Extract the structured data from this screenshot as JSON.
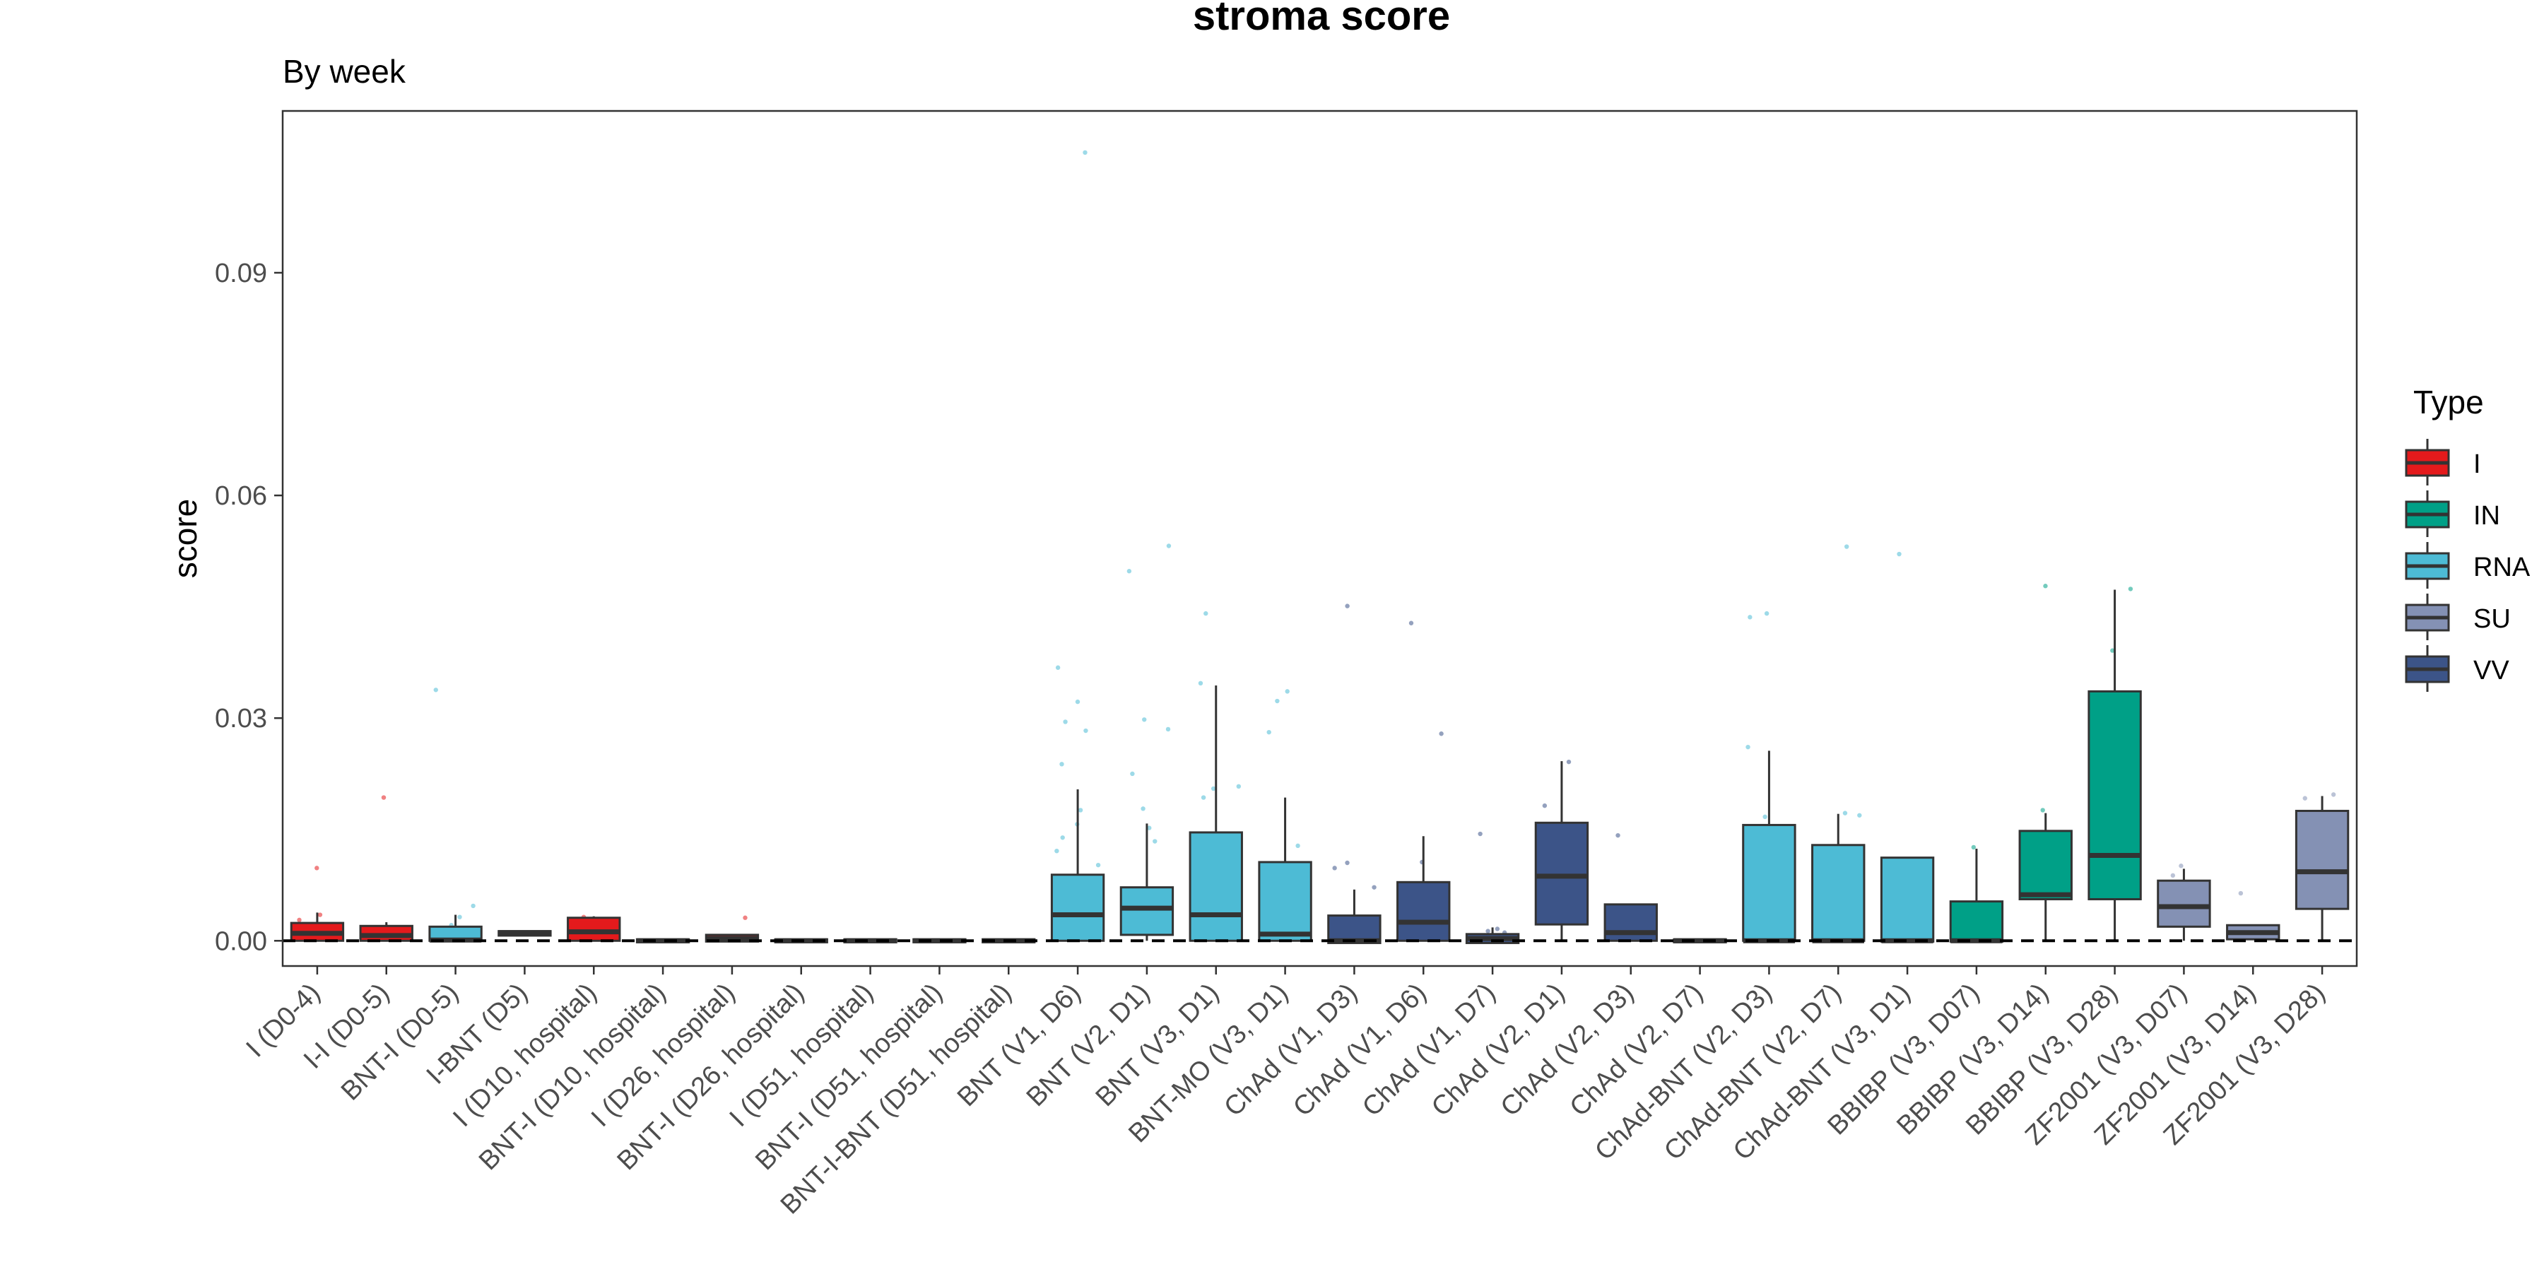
{
  "chart_data": {
    "type": "box",
    "title": "stroma score",
    "subtitle": "By week",
    "xlabel": "",
    "ylabel": "score",
    "ylim": [
      -0.0034,
      0.1118
    ],
    "yticks": [
      0.0,
      0.03,
      0.06,
      0.09
    ],
    "ytick_labels": [
      "0.00",
      "0.03",
      "0.06",
      "0.09"
    ],
    "reference_line_y": 0,
    "legend": {
      "title": "Type",
      "position": "right",
      "entries": [
        {
          "label": "I",
          "color": "#E41A1C"
        },
        {
          "label": "IN",
          "color": "#00A087"
        },
        {
          "label": "RNA",
          "color": "#4DBBD5"
        },
        {
          "label": "SU",
          "color": "#8491B4"
        },
        {
          "label": "VV",
          "color": "#3C5488"
        }
      ]
    },
    "categories": [
      {
        "label": "I (D0-4)",
        "type": "I",
        "q1": 0.0,
        "median": 0.001,
        "q3": 0.0024,
        "whisker_low": 0.0,
        "whisker_high": 0.0038,
        "points": [
          0.0098,
          0.0035,
          0.0028,
          0.0012
        ]
      },
      {
        "label": "I-I (D0-5)",
        "type": "I",
        "q1": 0.0,
        "median": 0.0007,
        "q3": 0.002,
        "whisker_low": 0.0,
        "whisker_high": 0.0025,
        "points": [
          0.0193,
          0.0019
        ]
      },
      {
        "label": "BNT-I (D0-5)",
        "type": "RNA",
        "q1": 0.0,
        "median": 0.0001,
        "q3": 0.0019,
        "whisker_low": 0.0,
        "whisker_high": 0.0035,
        "points": [
          0.0338,
          0.0047,
          0.0032,
          0.0021
        ]
      },
      {
        "label": "I-BNT (D5)",
        "type": "I",
        "q1": 0.0007,
        "median": 0.0011,
        "q3": 0.0013,
        "whisker_low": 0.0007,
        "whisker_high": 0.0013,
        "points": []
      },
      {
        "label": "I (D10, hospital)",
        "type": "I",
        "q1": 0.0,
        "median": 0.0012,
        "q3": 0.0031,
        "whisker_low": 0.0,
        "whisker_high": 0.0033,
        "points": [
          0.0032
        ]
      },
      {
        "label": "BNT-I (D10, hospital)",
        "type": "I",
        "q1": -0.0002,
        "median": 0.0,
        "q3": 0.0002,
        "whisker_low": -0.0002,
        "whisker_high": 0.0002,
        "points": []
      },
      {
        "label": "I (D26, hospital)",
        "type": "I",
        "q1": -0.0001,
        "median": 0.0003,
        "q3": 0.0008,
        "whisker_low": -0.0001,
        "whisker_high": 0.0008,
        "points": [
          0.0031
        ]
      },
      {
        "label": "BNT-I (D26, hospital)",
        "type": "I",
        "q1": -0.0002,
        "median": 0.0,
        "q3": 0.0002,
        "whisker_low": -0.0002,
        "whisker_high": 0.0002,
        "points": []
      },
      {
        "label": "I (D51, hospital)",
        "type": "I",
        "q1": -0.0002,
        "median": 0.0,
        "q3": 0.0002,
        "whisker_low": -0.0002,
        "whisker_high": 0.0002,
        "points": []
      },
      {
        "label": "BNT-I (D51, hospital)",
        "type": "I",
        "q1": -0.0002,
        "median": 0.0,
        "q3": 0.0002,
        "whisker_low": -0.0002,
        "whisker_high": 0.0002,
        "points": []
      },
      {
        "label": "BNT-I-BNT (D51, hospital)",
        "type": "I",
        "q1": -0.0002,
        "median": 0.0,
        "q3": 0.0002,
        "whisker_low": -0.0002,
        "whisker_high": 0.0002,
        "points": []
      },
      {
        "label": "BNT (V1, D6)",
        "type": "RNA",
        "q1": 0.0,
        "median": 0.0035,
        "q3": 0.0089,
        "whisker_low": 0.0,
        "whisker_high": 0.0204,
        "points": [
          0.1062,
          0.0368,
          0.0322,
          0.0295,
          0.0283,
          0.0238,
          0.0176,
          0.0157,
          0.0139,
          0.0121,
          0.0102
        ]
      },
      {
        "label": "BNT (V2, D1)",
        "type": "RNA",
        "q1": 0.0008,
        "median": 0.0044,
        "q3": 0.0072,
        "whisker_low": 0.0,
        "whisker_high": 0.0158,
        "points": [
          0.0532,
          0.0498,
          0.0298,
          0.0285,
          0.0225,
          0.0178,
          0.0152,
          0.0134
        ]
      },
      {
        "label": "BNT (V3, D1)",
        "type": "RNA",
        "q1": 0.0,
        "median": 0.0035,
        "q3": 0.0146,
        "whisker_low": 0.0,
        "whisker_high": 0.0344,
        "points": [
          0.0441,
          0.0347,
          0.0208,
          0.0205,
          0.0193
        ]
      },
      {
        "label": "BNT-MO (V3, D1)",
        "type": "RNA",
        "q1": 0.0,
        "median": 0.0009,
        "q3": 0.0106,
        "whisker_low": 0.0,
        "whisker_high": 0.0193,
        "points": [
          0.0336,
          0.0323,
          0.0281,
          0.0128
        ]
      },
      {
        "label": "ChAd (V1, D3)",
        "type": "VV",
        "q1": -0.0003,
        "median": 0.0,
        "q3": 0.0034,
        "whisker_low": -0.0003,
        "whisker_high": 0.0069,
        "points": [
          0.0451,
          0.0105,
          0.0098,
          0.0072
        ]
      },
      {
        "label": "ChAd (V1, D6)",
        "type": "VV",
        "q1": 0.0,
        "median": 0.0025,
        "q3": 0.0079,
        "whisker_low": 0.0,
        "whisker_high": 0.0141,
        "points": [
          0.0428,
          0.0279,
          0.0106
        ]
      },
      {
        "label": "ChAd (V1, D7)",
        "type": "VV",
        "q1": -0.0003,
        "median": 0.0003,
        "q3": 0.0009,
        "whisker_low": -0.0003,
        "whisker_high": 0.0018,
        "points": [
          0.0144,
          0.0016,
          0.0013,
          0.0011
        ]
      },
      {
        "label": "ChAd (V2, D1)",
        "type": "VV",
        "q1": 0.0022,
        "median": 0.0087,
        "q3": 0.0159,
        "whisker_low": 0.0,
        "whisker_high": 0.0242,
        "points": [
          0.0241,
          0.0182
        ]
      },
      {
        "label": "ChAd (V2, D3)",
        "type": "VV",
        "q1": 0.0,
        "median": 0.0011,
        "q3": 0.0049,
        "whisker_low": 0.0,
        "whisker_high": 0.0049,
        "points": [
          0.0142
        ]
      },
      {
        "label": "ChAd (V2, D7)",
        "type": "VV",
        "q1": -0.0002,
        "median": 0.0,
        "q3": 0.0002,
        "whisker_low": -0.0002,
        "whisker_high": 0.0002,
        "points": []
      },
      {
        "label": "ChAd-BNT (V2, D3)",
        "type": "RNA",
        "q1": 0.0,
        "median": 0.0,
        "q3": 0.0156,
        "whisker_low": 0.0,
        "whisker_high": 0.0256,
        "points": [
          0.0441,
          0.0436,
          0.0261,
          0.0167
        ]
      },
      {
        "label": "ChAd-BNT (V2, D7)",
        "type": "RNA",
        "q1": 0.0,
        "median": 0.0,
        "q3": 0.0129,
        "whisker_low": 0.0,
        "whisker_high": 0.0171,
        "points": [
          0.0531,
          0.0172,
          0.0169
        ]
      },
      {
        "label": "ChAd-BNT (V3, D1)",
        "type": "RNA",
        "q1": -0.0001,
        "median": 0.0,
        "q3": 0.0112,
        "whisker_low": -0.0001,
        "whisker_high": 0.0112,
        "points": [
          0.0521
        ]
      },
      {
        "label": "BBIBP (V3, D07)",
        "type": "IN",
        "q1": -0.0001,
        "median": 0.0,
        "q3": 0.0053,
        "whisker_low": -0.0001,
        "whisker_high": 0.0124,
        "points": [
          0.0126
        ]
      },
      {
        "label": "BBIBP (V3, D14)",
        "type": "IN",
        "q1": 0.0056,
        "median": 0.0062,
        "q3": 0.0148,
        "whisker_low": 0.0,
        "whisker_high": 0.0172,
        "points": [
          0.0478,
          0.0176
        ]
      },
      {
        "label": "BBIBP (V3, D28)",
        "type": "IN",
        "q1": 0.0056,
        "median": 0.0115,
        "q3": 0.0336,
        "whisker_low": 0.0,
        "whisker_high": 0.0473,
        "points": [
          0.0474,
          0.0391
        ]
      },
      {
        "label": "ZF2001 (V3, D07)",
        "type": "SU",
        "q1": 0.0019,
        "median": 0.0046,
        "q3": 0.0081,
        "whisker_low": 0.0,
        "whisker_high": 0.0097,
        "points": [
          0.0101,
          0.0088
        ]
      },
      {
        "label": "ZF2001 (V3, D14)",
        "type": "SU",
        "q1": 0.0002,
        "median": 0.0011,
        "q3": 0.0021,
        "whisker_low": 0.0002,
        "whisker_high": 0.0021,
        "points": [
          0.0064
        ]
      },
      {
        "label": "ZF2001 (V3, D28)",
        "type": "SU",
        "q1": 0.0043,
        "median": 0.0093,
        "q3": 0.0175,
        "whisker_low": 0.0,
        "whisker_high": 0.0195,
        "points": [
          0.0197,
          0.0192
        ]
      }
    ]
  }
}
